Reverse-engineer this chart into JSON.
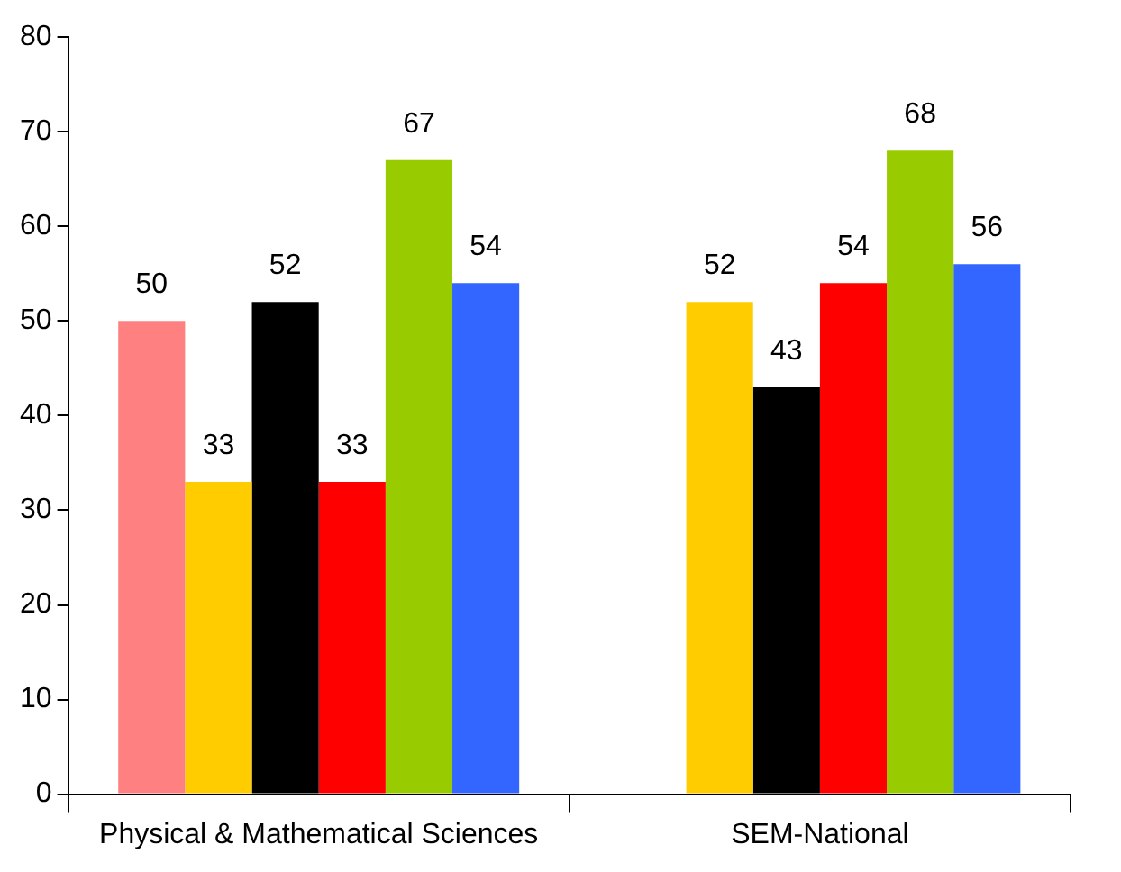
{
  "chart_data": {
    "type": "bar",
    "categories": [
      "Physical & Mathematical Sciences",
      "SEM-National"
    ],
    "series": [
      {
        "color": "#ff8080",
        "values": [
          50,
          null
        ]
      },
      {
        "color": "#ffcc00",
        "values": [
          33,
          52
        ]
      },
      {
        "color": "#000000",
        "values": [
          52,
          43
        ]
      },
      {
        "color": "#ff0000",
        "values": [
          33,
          54
        ]
      },
      {
        "color": "#99cc00",
        "values": [
          67,
          68
        ]
      },
      {
        "color": "#3366ff",
        "values": [
          54,
          56
        ]
      }
    ],
    "ylim": [
      0,
      80
    ],
    "yticks": [
      0,
      10,
      20,
      30,
      40,
      50,
      60,
      70,
      80
    ],
    "grid": false,
    "legend": false,
    "data_labels": true
  }
}
